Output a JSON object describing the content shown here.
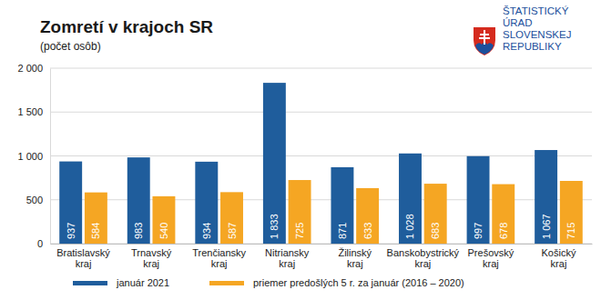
{
  "chart_data": {
    "type": "bar",
    "title": "Zomretí v krajoch SR",
    "subtitle": "(počet osôb)",
    "annotations": [
      "ŠTATISTICKÝ",
      "ÚRAD",
      "SLOVENSKEJ",
      "REPUBLIKY"
    ],
    "categories": [
      "Bratislavský kraj",
      "Trnavský kraj",
      "Trenčiansky kraj",
      "Nitriansky kraj",
      "Žilinský kraj",
      "Banskobystrický kraj",
      "Prešovský kraj",
      "Košický kraj"
    ],
    "series": [
      {
        "name": "január 2021",
        "color": "#1f5d9c",
        "values": [
          937,
          983,
          934,
          1833,
          871,
          1028,
          997,
          1067
        ],
        "value_labels": [
          "937",
          "983",
          "934",
          "1 833",
          "871",
          "1 028",
          "997",
          "1 067"
        ]
      },
      {
        "name": "priemer predošlých 5 r. za január (2016 – 2020)",
        "color": "#f5a623",
        "values": [
          584,
          540,
          587,
          725,
          633,
          683,
          678,
          715
        ],
        "value_labels": [
          "584",
          "540",
          "587",
          "725",
          "633",
          "683",
          "678",
          "715"
        ]
      }
    ],
    "ylim": [
      0,
      2000
    ],
    "yticks": [
      0,
      500,
      {
        "value": 1000,
        "label": "1 000"
      },
      {
        "value": 1500,
        "label": "1 500"
      },
      {
        "value": 2000,
        "label": "2 000"
      }
    ],
    "grid": true,
    "legend": "bottom",
    "data_labels": true
  }
}
